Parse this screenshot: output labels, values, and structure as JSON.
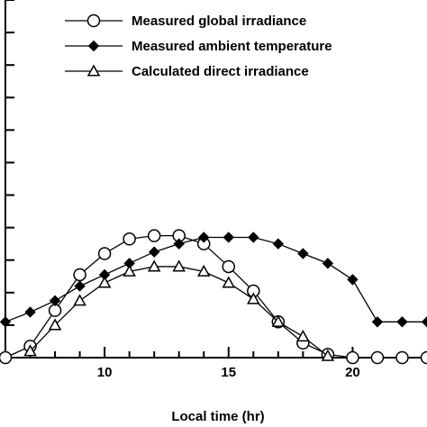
{
  "chart_data": {
    "type": "line",
    "xlabel": "Local time (hr)",
    "ylabel": "",
    "xlim": [
      6,
      23
    ],
    "ylim": [
      0,
      11
    ],
    "xticks": [
      10,
      15,
      20
    ],
    "xtick_labels": [
      "10",
      "15",
      "20"
    ],
    "grid": false,
    "legend_position": "top-right",
    "series": [
      {
        "name": "Measured global irradiance",
        "marker": "open-circle",
        "x": [
          6,
          7,
          8,
          9,
          10,
          11,
          12,
          13,
          14,
          15,
          16,
          17,
          18,
          19,
          20,
          21,
          22,
          23
        ],
        "y": [
          0,
          0.35,
          1.45,
          2.55,
          3.2,
          3.65,
          3.75,
          3.75,
          3.5,
          2.8,
          2.05,
          1.1,
          0.45,
          0.1,
          0,
          0,
          0,
          0
        ]
      },
      {
        "name": "Measured ambient temperature",
        "marker": "filled-diamond",
        "x": [
          6,
          7,
          8,
          9,
          10,
          11,
          12,
          13,
          14,
          15,
          16,
          17,
          18,
          19,
          20,
          21,
          22,
          23
        ],
        "y": [
          1.1,
          1.4,
          1.75,
          2.2,
          2.55,
          2.9,
          3.25,
          3.5,
          3.7,
          3.7,
          3.7,
          3.5,
          3.2,
          2.9,
          2.4,
          1.1,
          1.1,
          1.1
        ]
      },
      {
        "name": "Calculated direct irradiance",
        "marker": "open-triangle",
        "x": [
          7,
          8,
          9,
          10,
          11,
          12,
          13,
          14,
          15,
          16,
          17,
          18,
          19
        ],
        "y": [
          0.2,
          1.0,
          1.75,
          2.3,
          2.65,
          2.8,
          2.8,
          2.65,
          2.3,
          1.8,
          1.1,
          0.65,
          0.05
        ]
      }
    ]
  }
}
